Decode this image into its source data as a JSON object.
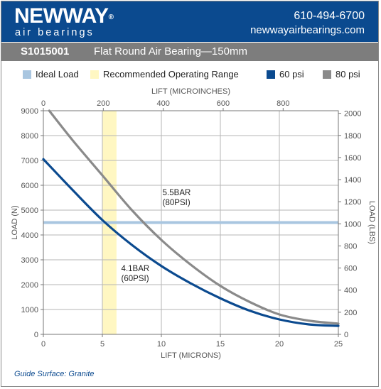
{
  "header": {
    "brand": "NEWWAY",
    "brand_mark": "®",
    "tagline": "air bearings",
    "phone": "610-494-6700",
    "website": "newwayairbearings.com"
  },
  "product": {
    "code": "S1015001",
    "description": "Flat Round Air Bearing—150mm"
  },
  "legend": {
    "ideal_load": {
      "label": "Ideal Load",
      "color": "#a9c6e0"
    },
    "operating_range": {
      "label": "Recommended Operating Range",
      "color": "#fff7c2"
    },
    "s60": {
      "label": "60 psi",
      "color": "#0b4a8f"
    },
    "s80": {
      "label": "80 psi",
      "color": "#8a8a8a"
    }
  },
  "footer": {
    "guide_surface": "Guide Surface: Granite"
  },
  "chart_data": {
    "type": "line",
    "xlabel": "LIFT (MICRONS)",
    "x2label": "LIFT (MICROINCHES)",
    "ylabel": "LOAD (N)",
    "y2label": "LOAD (LBS)",
    "xlim": [
      0,
      25
    ],
    "ylim": [
      0,
      9000
    ],
    "x2lim": [
      0,
      984.25
    ],
    "y2lim": [
      0,
      2023.3
    ],
    "x_ticks": [
      "0",
      "5",
      "10",
      "15",
      "20",
      "25"
    ],
    "y_ticks": [
      "0",
      "1000",
      "2000",
      "3000",
      "4000",
      "5000",
      "6000",
      "7000",
      "8000",
      "9000"
    ],
    "x2_ticks": [
      "0",
      "200",
      "400",
      "600",
      "800"
    ],
    "y2_ticks": [
      "0",
      "200",
      "400",
      "600",
      "800",
      "1000",
      "1200",
      "1400",
      "1600",
      "1800",
      "2000"
    ],
    "grid": true,
    "ideal_load": 4500,
    "operating_range": [
      5,
      6.2
    ],
    "series": [
      {
        "name": "60 psi",
        "x": [
          0,
          2.5,
          5,
          7.5,
          10,
          12.5,
          15,
          17.5,
          20,
          22.5,
          25
        ],
        "y": [
          7050,
          5800,
          4600,
          3600,
          2750,
          2050,
          1450,
          950,
          600,
          400,
          340
        ]
      },
      {
        "name": "80 psi",
        "x": [
          0.5,
          2.5,
          5,
          7.5,
          10,
          12.5,
          15,
          17.5,
          20,
          22.5,
          25
        ],
        "y": [
          9000,
          7800,
          6400,
          5000,
          3800,
          2800,
          1950,
          1300,
          800,
          550,
          430
        ]
      }
    ],
    "annotations": [
      {
        "text": "5.5BAR",
        "text2": "(80PSI)",
        "x": 10.1,
        "y": 5600
      },
      {
        "text": "4.1BAR",
        "text2": "(60PSI)",
        "x": 6.6,
        "y": 2550
      }
    ]
  }
}
